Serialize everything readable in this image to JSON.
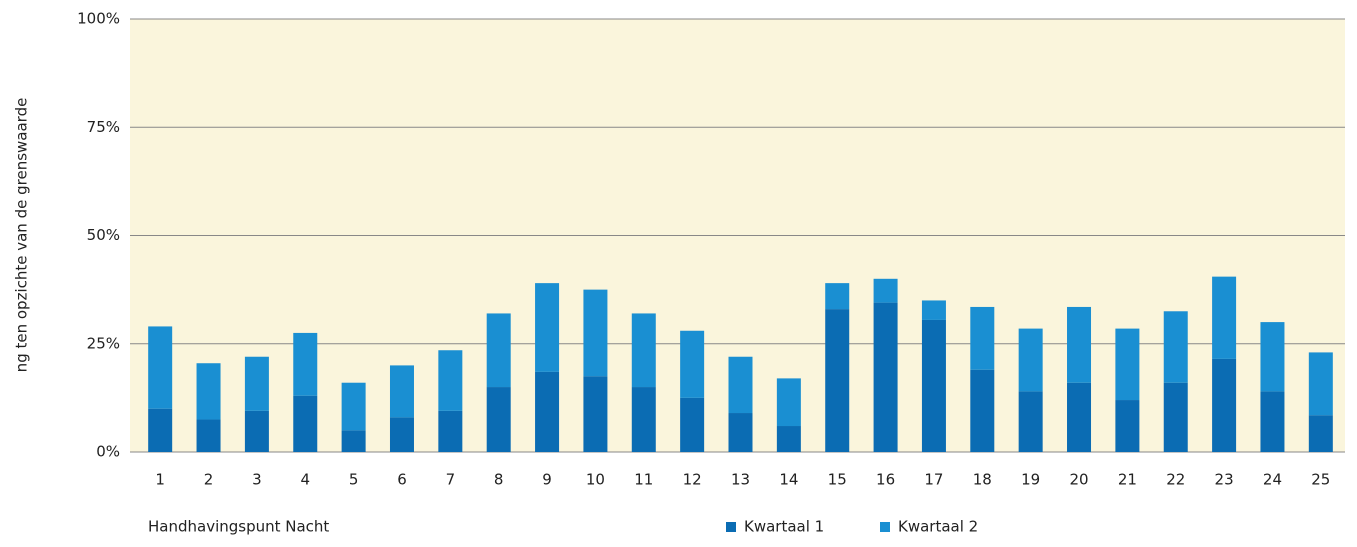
{
  "chart_data": {
    "type": "stacked_bar",
    "xlabel": "Handhavingspunt Nacht",
    "ylabel": "ng ten opzichte van de grenswaarde",
    "categories": [
      "1",
      "2",
      "3",
      "4",
      "5",
      "6",
      "7",
      "8",
      "9",
      "10",
      "11",
      "12",
      "13",
      "14",
      "15",
      "16",
      "17",
      "18",
      "19",
      "20",
      "21",
      "22",
      "23",
      "24",
      "25"
    ],
    "series": [
      {
        "name": "Kwartaal 1",
        "color": "#0b6cb3",
        "values": [
          10,
          7.5,
          9.5,
          13,
          5,
          8,
          9.5,
          15,
          18.5,
          17.5,
          15,
          12.5,
          9,
          6,
          33,
          34.5,
          30.5,
          19,
          14,
          16,
          12,
          16,
          21.5,
          14,
          8.5
        ]
      },
      {
        "name": "Kwartaal 2",
        "color": "#1a8fd2",
        "values": [
          19,
          13,
          12.5,
          14.5,
          11,
          12,
          14,
          17,
          20.5,
          20,
          17,
          15.5,
          13,
          11,
          6,
          5.5,
          4.5,
          14.5,
          14.5,
          17.5,
          16.5,
          16.5,
          19,
          16,
          14.5
        ]
      }
    ],
    "ylim": [
      0,
      100
    ],
    "yticks": [
      {
        "value": 0,
        "label": "0%"
      },
      {
        "value": 25,
        "label": "25%"
      },
      {
        "value": 50,
        "label": "50%"
      },
      {
        "value": 75,
        "label": "75%"
      },
      {
        "value": 100,
        "label": "100%"
      }
    ],
    "grid": true,
    "legend": "bottom"
  }
}
